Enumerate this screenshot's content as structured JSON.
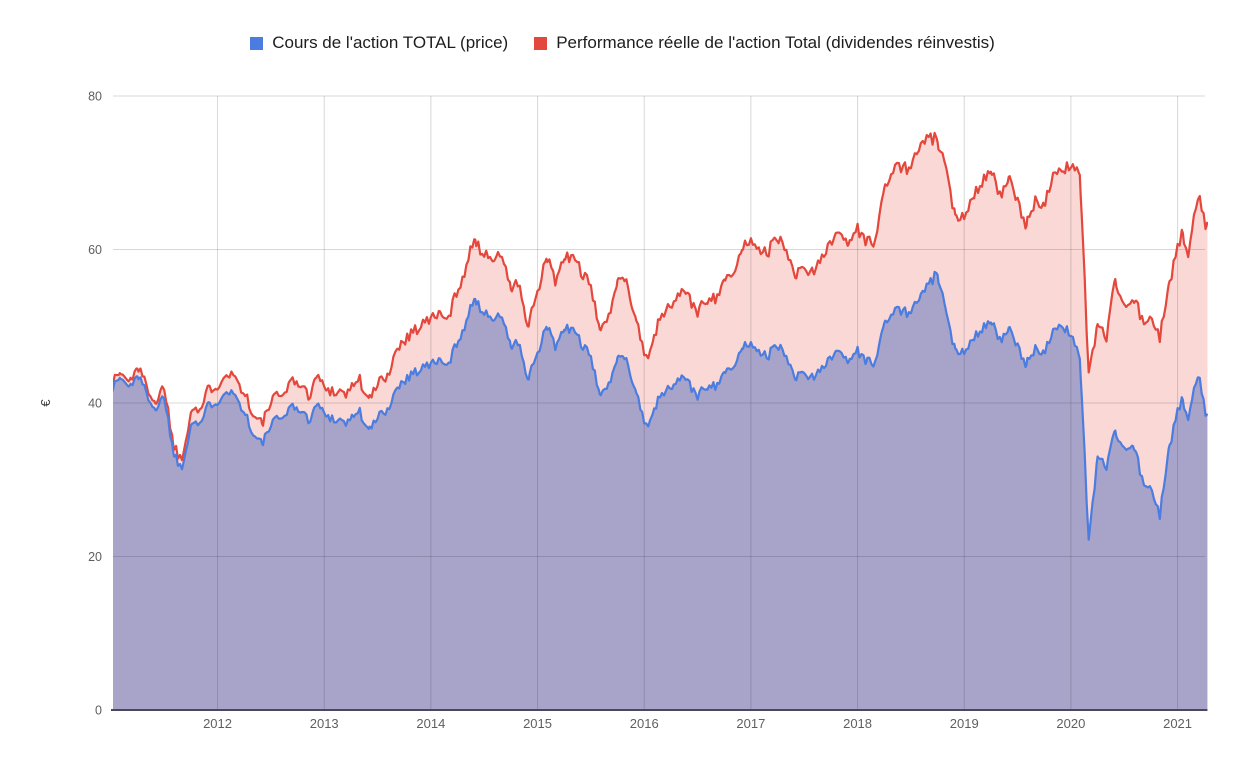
{
  "chart_data": {
    "type": "area",
    "title": "",
    "xlabel": "",
    "ylabel": "€",
    "ylim": [
      0,
      80
    ],
    "y_axis_ticks": [
      0,
      20,
      40,
      60,
      80
    ],
    "x_axis_ticks": [
      2012,
      2013,
      2014,
      2015,
      2016,
      2017,
      2018,
      2019,
      2020,
      2021
    ],
    "x_range": [
      2011.0,
      2021.28
    ],
    "grid": true,
    "legend_position": "top",
    "monthly_start": 2011,
    "style": {
      "background": "#ffffff",
      "grid_color": "#cfcfcf",
      "axis_line_color": "#4a475c",
      "tick_text_color": "#5f5f5f",
      "legend_text_color": "#1d1d1f"
    },
    "series": [
      {
        "key": "price",
        "name": "Cours de l'action TOTAL (price)",
        "color": "#4b7de0",
        "fill": "#a8a3c8",
        "monthly_values": [
          40.8,
          43.6,
          42.6,
          43.0,
          41.0,
          39.6,
          40.2,
          34.2,
          31.4,
          36.8,
          37.6,
          39.4,
          40.6,
          42.2,
          41.4,
          38.6,
          35.4,
          34.2,
          36.4,
          38.2,
          39.2,
          38.6,
          38.4,
          39.0,
          39.4,
          38.4,
          37.8,
          37.2,
          38.6,
          36.4,
          38.4,
          39.6,
          41.6,
          43.6,
          44.6,
          44.6,
          44.2,
          45.6,
          45.2,
          48.0,
          50.6,
          54.2,
          51.6,
          51.0,
          51.6,
          46.8,
          47.6,
          43.0,
          45.6,
          49.6,
          47.6,
          50.0,
          49.4,
          47.0,
          45.2,
          41.6,
          42.4,
          46.2,
          45.6,
          42.6,
          37.4,
          38.8,
          41.6,
          42.6,
          43.6,
          42.6,
          41.6,
          42.6,
          42.6,
          44.6,
          44.6,
          47.6,
          47.4,
          46.6,
          46.4,
          46.6,
          46.4,
          43.6,
          43.2,
          43.2,
          45.2,
          46.2,
          46.6,
          46.0,
          47.2,
          45.2,
          45.6,
          49.6,
          52.2,
          52.0,
          52.6,
          53.2,
          55.0,
          56.3,
          50.6,
          46.4,
          47.6,
          49.2,
          49.6,
          50.4,
          47.6,
          49.2,
          46.6,
          44.2,
          47.6,
          47.0,
          48.6,
          49.4,
          49.8,
          46.0,
          22.2,
          32.8,
          32.4,
          36.6,
          33.2,
          33.8,
          31.0,
          28.0,
          25.4,
          34.5,
          38.6
        ],
        "tail_x": [
          2021.05,
          2021.1,
          2021.19,
          2021.28
        ],
        "tail_values": [
          40.3,
          38.4,
          43.3,
          38.6
        ]
      },
      {
        "key": "total-return",
        "name": "Performance réelle de l'action Total (dividendes réinvestis)",
        "color": "#e4473c",
        "fill": "#f9d8d5",
        "monthly_values": [
          41.4,
          44.3,
          43.4,
          43.9,
          41.9,
          40.6,
          41.3,
          35.3,
          32.6,
          38.4,
          39.4,
          41.4,
          42.8,
          44.6,
          43.9,
          41.0,
          37.8,
          36.7,
          39.2,
          41.2,
          42.4,
          41.8,
          41.7,
          42.5,
          43.0,
          42.1,
          41.6,
          41.0,
          42.7,
          40.4,
          42.8,
          44.2,
          46.6,
          49.0,
          50.2,
          50.3,
          49.9,
          51.7,
          51.3,
          54.7,
          57.8,
          62.1,
          59.2,
          58.8,
          59.6,
          54.2,
          55.3,
          49.9,
          53.4,
          58.4,
          56.2,
          59.3,
          58.8,
          56.2,
          54.2,
          50.2,
          51.3,
          56.3,
          55.8,
          52.3,
          46.3,
          48.2,
          52.0,
          53.4,
          54.8,
          53.8,
          52.7,
          54.0,
          54.1,
          56.8,
          56.8,
          60.6,
          60.8,
          59.9,
          60.0,
          60.4,
          60.3,
          57.0,
          56.7,
          56.9,
          59.8,
          61.3,
          62.0,
          61.5,
          63.2,
          60.7,
          61.5,
          67.0,
          70.8,
          70.7,
          71.7,
          72.7,
          74.0,
          73.5,
          69.1,
          63.7,
          65.5,
          67.9,
          68.7,
          70.0,
          66.3,
          68.7,
          65.3,
          62.1,
          67.0,
          66.3,
          68.7,
          69.5,
          72.0,
          70.0,
          44.0,
          50.0,
          49.4,
          56.4,
          51.6,
          52.6,
          52.0,
          50.0,
          48.6,
          56.0,
          59.8
        ],
        "tail_x": [
          2021.05,
          2021.1,
          2021.19,
          2021.28
        ],
        "tail_values": [
          62.0,
          59.8,
          66.4,
          63.6
        ]
      }
    ]
  }
}
